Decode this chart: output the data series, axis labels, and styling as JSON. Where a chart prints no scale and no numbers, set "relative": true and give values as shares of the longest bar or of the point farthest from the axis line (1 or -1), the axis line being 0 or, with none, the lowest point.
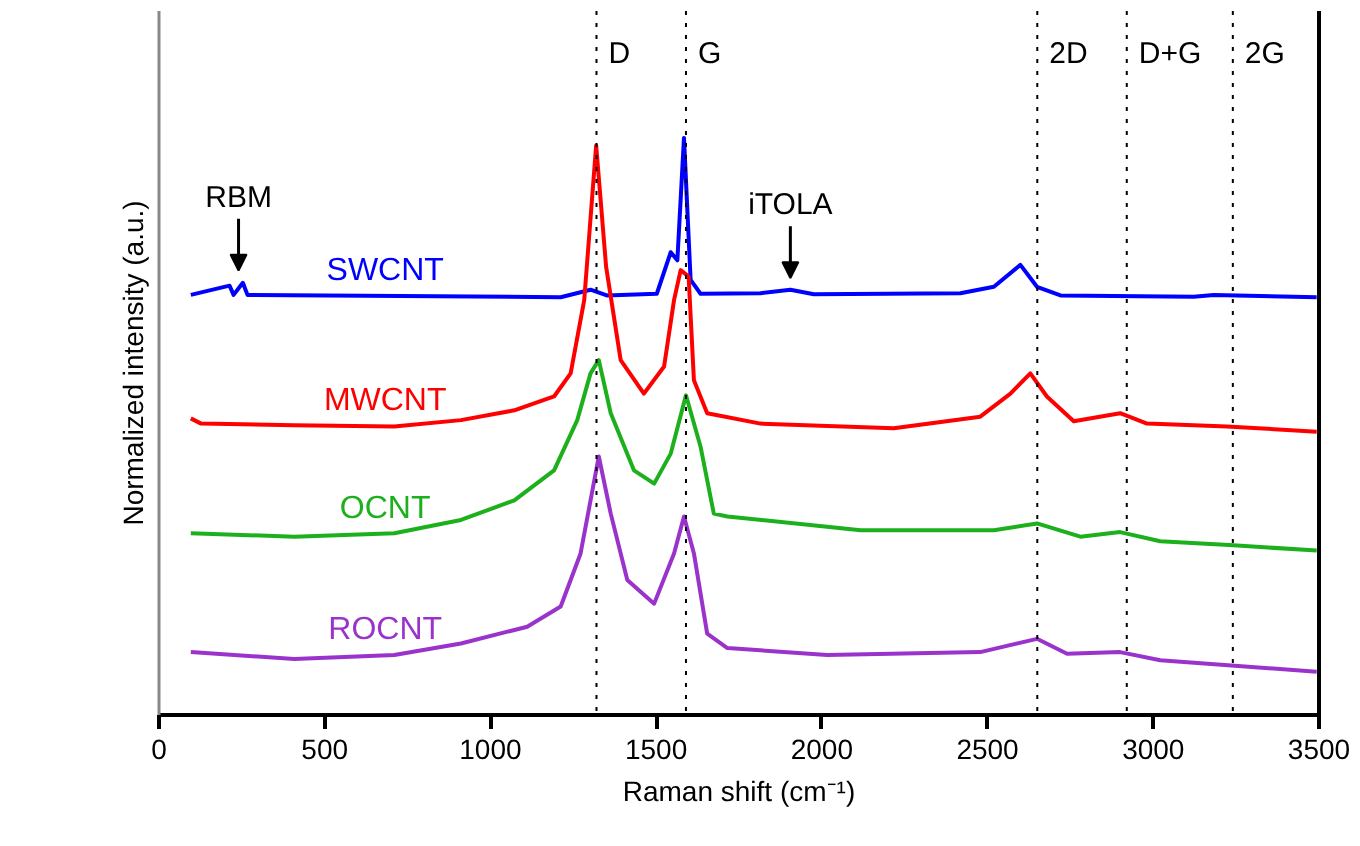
{
  "chart_data": {
    "type": "line",
    "relative": true,
    "xlabel": "Raman shift (cm⁻¹)",
    "ylabel": "Normalized intensity (a.u.)",
    "xlim": [
      0,
      3500
    ],
    "xticks": [
      0,
      500,
      1000,
      1500,
      2000,
      2500,
      3000,
      3500
    ],
    "grid": false,
    "marker": "none",
    "line_style": "solid",
    "series": [
      {
        "name": "SWCNT",
        "color": "#0000ff",
        "x": [
          96,
          213,
          225,
          253,
          267,
          1212,
          1302,
          1351,
          1502,
          1544,
          1564,
          1584,
          1604,
          1634,
          1815,
          1905,
          1976,
          2418,
          2519,
          2599,
          2649,
          2720,
          3122,
          3182,
          3493
        ],
        "values": [
          0.728,
          0.744,
          0.728,
          0.749,
          0.728,
          0.724,
          0.737,
          0.727,
          0.73,
          0.802,
          0.788,
          1.0,
          0.754,
          0.73,
          0.731,
          0.737,
          0.729,
          0.731,
          0.742,
          0.78,
          0.742,
          0.727,
          0.725,
          0.728,
          0.724
        ]
      },
      {
        "name": "MWCNT",
        "color": "#ff0000",
        "x": [
          96,
          127,
          408,
          710,
          911,
          1072,
          1192,
          1242,
          1283,
          1319,
          1349,
          1393,
          1463,
          1524,
          1554,
          1574,
          1598,
          1614,
          1654,
          1815,
          2217,
          2478,
          2569,
          2629,
          2679,
          2760,
          2900,
          2981,
          3222,
          3493
        ],
        "values": [
          0.514,
          0.505,
          0.502,
          0.5,
          0.511,
          0.528,
          0.552,
          0.592,
          0.719,
          0.987,
          0.777,
          0.615,
          0.557,
          0.604,
          0.719,
          0.771,
          0.76,
          0.58,
          0.523,
          0.505,
          0.497,
          0.517,
          0.557,
          0.592,
          0.552,
          0.509,
          0.523,
          0.505,
          0.5,
          0.491
        ]
      },
      {
        "name": "OCNT",
        "color": "#1db01d",
        "x": [
          96,
          408,
          710,
          911,
          1072,
          1192,
          1262,
          1302,
          1327,
          1363,
          1433,
          1494,
          1544,
          1590,
          1634,
          1674,
          1715,
          2117,
          2519,
          2649,
          2780,
          2900,
          3021,
          3242,
          3493
        ],
        "values": [
          0.315,
          0.309,
          0.315,
          0.338,
          0.372,
          0.424,
          0.511,
          0.592,
          0.615,
          0.523,
          0.424,
          0.401,
          0.453,
          0.554,
          0.465,
          0.349,
          0.344,
          0.32,
          0.32,
          0.332,
          0.309,
          0.317,
          0.301,
          0.294,
          0.285
        ]
      },
      {
        "name": "ROCNT",
        "color": "#9933cc",
        "x": [
          96,
          408,
          710,
          911,
          1111,
          1212,
          1272,
          1327,
          1363,
          1413,
          1494,
          1554,
          1584,
          1614,
          1654,
          1715,
          2016,
          2478,
          2649,
          2740,
          2900,
          3021,
          3493
        ],
        "values": [
          0.109,
          0.097,
          0.104,
          0.124,
          0.153,
          0.188,
          0.28,
          0.448,
          0.349,
          0.234,
          0.193,
          0.28,
          0.344,
          0.28,
          0.141,
          0.116,
          0.104,
          0.109,
          0.132,
          0.106,
          0.109,
          0.095,
          0.075
        ]
      }
    ],
    "ref_lines": [
      {
        "axis": "x",
        "value": 1320,
        "label": "D",
        "line_style": "dotted",
        "color": "#000000"
      },
      {
        "axis": "x",
        "value": 1590,
        "label": "G",
        "line_style": "dotted",
        "color": "#000000"
      },
      {
        "axis": "x",
        "value": 2650,
        "label": "2D",
        "line_style": "dotted",
        "color": "#000000"
      },
      {
        "axis": "x",
        "value": 2920,
        "label": "D+G",
        "line_style": "dotted",
        "color": "#000000"
      },
      {
        "axis": "x",
        "value": 3240,
        "label": "2G",
        "line_style": "dotted",
        "color": "#000000"
      }
    ],
    "annotations": [
      {
        "text": "RBM",
        "x": 240,
        "y": 0.75
      },
      {
        "text": "iTOLA",
        "x": 1905,
        "y": 0.737
      }
    ]
  }
}
